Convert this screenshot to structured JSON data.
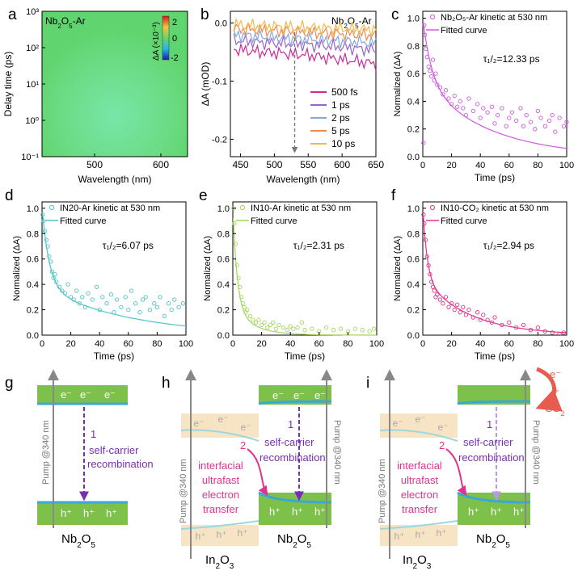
{
  "panel_letters": {
    "a": "a",
    "b": "b",
    "c": "c",
    "d": "d",
    "e": "e",
    "f": "f",
    "g": "g",
    "h": "h",
    "i": "i"
  },
  "colors": {
    "green": "#7dc04a",
    "blue_band": "#3aa7d8",
    "cyan": "#5bcdd0",
    "purple": "#7a2fb0",
    "magenta": "#e0348c",
    "arrow": "#888888",
    "peach": "#f7e4c4",
    "red_arc": "#e85c50"
  },
  "chart_data": [
    {
      "panel": "a",
      "type": "heatmap",
      "label": "Nb2O5-Ar",
      "xlabel": "Wavelength (nm)",
      "ylabel": "Delay time (ps)",
      "xticks": [
        "500",
        "600"
      ],
      "yticks": [
        "10³",
        "10²",
        "10¹",
        "10⁰",
        "10⁻¹"
      ],
      "yscale": "log",
      "xlim": [
        430,
        650
      ],
      "ylim": [
        0.1,
        1000
      ],
      "colorbar": {
        "title": "ΔA (×10⁻³)",
        "ticks": [
          "2",
          "0",
          "-2"
        ],
        "range": [
          -2,
          2
        ]
      },
      "grid": false
    },
    {
      "panel": "b",
      "type": "line",
      "label": "Nb2O5-Ar",
      "xlabel": "Wavelength (nm)",
      "ylabel": "ΔA (mOD)",
      "xlim": [
        435,
        650
      ],
      "ylim": [
        -0.23,
        0.02
      ],
      "xticks": [
        "450",
        "500",
        "550",
        "600",
        "650"
      ],
      "yticks": [
        "0.0",
        "-0.1",
        "-0.2"
      ],
      "marker_x": 530,
      "series": [
        {
          "name": "500 fs",
          "color": "#cc2a9a",
          "values": [
            -0.045,
            -0.05,
            -0.052,
            -0.055,
            -0.06,
            -0.065,
            -0.07
          ]
        },
        {
          "name": "1 ps",
          "color": "#9a64c8",
          "values": [
            -0.03,
            -0.033,
            -0.035,
            -0.037,
            -0.04,
            -0.043,
            -0.047
          ]
        },
        {
          "name": "2 ps",
          "color": "#84a8e0",
          "values": [
            -0.02,
            -0.023,
            -0.026,
            -0.028,
            -0.03,
            -0.032,
            -0.035
          ]
        },
        {
          "name": "5 ps",
          "color": "#f08a50",
          "values": [
            -0.01,
            -0.012,
            -0.014,
            -0.016,
            -0.018,
            -0.019,
            -0.021
          ]
        },
        {
          "name": "10 ps",
          "color": "#f2b84a",
          "values": [
            -0.003,
            -0.005,
            -0.006,
            -0.008,
            -0.009,
            -0.01,
            -0.011
          ]
        }
      ],
      "x": [
        440,
        475,
        510,
        545,
        580,
        615,
        650
      ]
    },
    {
      "panel": "c",
      "type": "scatter",
      "legend": [
        "Nb₂O₅-Ar kinetic at 530 nm",
        "Fitted curve"
      ],
      "annotation": "τ₁/₂=12.33 ps",
      "xlabel": "Time (ps)",
      "ylabel": "Normalized (ΔA)",
      "xlim": [
        0,
        100
      ],
      "ylim": [
        0,
        1.05
      ],
      "xticks": [
        "0",
        "20",
        "40",
        "60",
        "80",
        "100"
      ],
      "yticks": [
        "0.0",
        "0.2",
        "0.4",
        "0.6",
        "0.8",
        "1.0"
      ],
      "color": "#d058e0",
      "fit": {
        "a1": 0.45,
        "t1": 6,
        "a2": 0.55,
        "t2": 45
      },
      "x": [
        0.5,
        1,
        1.5,
        2,
        3,
        4,
        5,
        6,
        7,
        8,
        9,
        10,
        12,
        14,
        16,
        18,
        20,
        22,
        24,
        26,
        28,
        30,
        32,
        35,
        38,
        40,
        42,
        45,
        48,
        50,
        52,
        55,
        58,
        60,
        62,
        65,
        68,
        70,
        72,
        75,
        78,
        80,
        82,
        85,
        88,
        90,
        92,
        95,
        98,
        100
      ],
      "y": [
        0.1,
        0.95,
        0.88,
        0.78,
        0.72,
        0.65,
        0.62,
        0.58,
        0.7,
        0.55,
        0.6,
        0.52,
        0.5,
        0.45,
        0.48,
        0.42,
        0.38,
        0.44,
        0.36,
        0.4,
        0.35,
        0.3,
        0.42,
        0.33,
        0.38,
        0.28,
        0.35,
        0.32,
        0.36,
        0.24,
        0.3,
        0.35,
        0.22,
        0.28,
        0.32,
        0.26,
        0.35,
        0.22,
        0.3,
        0.25,
        0.2,
        0.33,
        0.28,
        0.22,
        0.26,
        0.3,
        0.18,
        0.28,
        0.22,
        0.25
      ]
    },
    {
      "panel": "d",
      "type": "scatter",
      "legend": [
        "IN20-Ar kinetic at 530 nm",
        "Fitted curve"
      ],
      "annotation": "τ₁/₂=6.07 ps",
      "xlabel": "Time (ps)",
      "ylabel": "Normalized (ΔA)",
      "xlim": [
        0,
        100
      ],
      "ylim": [
        0,
        1.05
      ],
      "xticks": [
        "0",
        "20",
        "40",
        "60",
        "80",
        "100"
      ],
      "yticks": [
        "0.0",
        "0.2",
        "0.4",
        "0.6",
        "0.8",
        "1.0"
      ],
      "color": "#4cc4c8",
      "fit": {
        "a1": 0.62,
        "t1": 5,
        "a2": 0.38,
        "t2": 60
      },
      "x": [
        0.5,
        1,
        2,
        3,
        4,
        5,
        6,
        7,
        8,
        9,
        10,
        12,
        14,
        16,
        18,
        20,
        22,
        24,
        26,
        28,
        30,
        32,
        35,
        38,
        40,
        42,
        45,
        48,
        50,
        52,
        55,
        58,
        60,
        62,
        65,
        68,
        70,
        72,
        75,
        78,
        80,
        82,
        85,
        88,
        90,
        92,
        95,
        98
      ],
      "y": [
        0.95,
        0.9,
        0.82,
        0.75,
        0.7,
        0.62,
        0.58,
        0.5,
        0.45,
        0.48,
        0.42,
        0.38,
        0.35,
        0.33,
        0.4,
        0.3,
        0.28,
        0.35,
        0.25,
        0.3,
        0.22,
        0.33,
        0.28,
        0.38,
        0.2,
        0.3,
        0.25,
        0.32,
        0.18,
        0.28,
        0.22,
        0.3,
        0.2,
        0.35,
        0.25,
        0.18,
        0.28,
        0.3,
        0.2,
        0.25,
        0.22,
        0.3,
        0.15,
        0.25,
        0.2,
        0.28,
        0.22,
        0.25
      ]
    },
    {
      "panel": "e",
      "type": "scatter",
      "legend": [
        "IN10-Ar kinetic at 530 nm",
        "Fitted curve"
      ],
      "annotation": "τ₁/₂=2.31 ps",
      "xlabel": "Time (ps)",
      "ylabel": "Normalized (ΔA)",
      "xlim": [
        0,
        100
      ],
      "ylim": [
        0,
        1.05
      ],
      "xticks": [
        "0",
        "20",
        "40",
        "60",
        "80",
        "100"
      ],
      "yticks": [
        "0.0",
        "0.2",
        "0.4",
        "0.6",
        "0.8",
        "1.0"
      ],
      "color": "#a4d65a",
      "fit": {
        "a1": 0.78,
        "t1": 3,
        "a2": 0.22,
        "t2": 14
      },
      "x": [
        0.5,
        1,
        2,
        3,
        4,
        5,
        6,
        7,
        8,
        9,
        10,
        12,
        14,
        16,
        18,
        20,
        22,
        24,
        26,
        28,
        30,
        32,
        35,
        38,
        40,
        42,
        45,
        48,
        50,
        55,
        60,
        65,
        70,
        75,
        80,
        85,
        90,
        95,
        98
      ],
      "y": [
        1.0,
        0.88,
        0.72,
        0.55,
        0.45,
        0.38,
        0.3,
        0.25,
        0.22,
        0.18,
        0.2,
        0.15,
        0.12,
        0.1,
        0.12,
        0.08,
        0.1,
        0.06,
        0.08,
        0.1,
        0.05,
        0.08,
        0.06,
        0.04,
        0.07,
        0.05,
        0.06,
        0.1,
        0.04,
        0.05,
        0.03,
        0.06,
        0.04,
        0.05,
        0.03,
        0.05,
        0.04,
        0.03,
        0.05
      ]
    },
    {
      "panel": "f",
      "type": "scatter",
      "legend": [
        "IN10-CO₂ kinetic at 530 nm",
        "Fitted curve"
      ],
      "annotation": "τ₁/₂=2.94 ps",
      "xlabel": "Time (ps)",
      "ylabel": "Normalized (ΔA)",
      "xlim": [
        0,
        100
      ],
      "ylim": [
        0,
        1.05
      ],
      "xticks": [
        "0",
        "20",
        "40",
        "60",
        "80",
        "100"
      ],
      "yticks": [
        "0.0",
        "0.2",
        "0.4",
        "0.6",
        "0.8",
        "1.0"
      ],
      "color": "#e0348c",
      "fit": {
        "a1": 0.55,
        "t1": 3,
        "a2": 0.45,
        "t2": 32
      },
      "x": [
        0.5,
        1,
        2,
        3,
        4,
        5,
        6,
        7,
        8,
        9,
        10,
        12,
        14,
        16,
        18,
        20,
        22,
        24,
        26,
        28,
        30,
        32,
        35,
        38,
        40,
        42,
        45,
        48,
        50,
        55,
        60,
        65,
        70,
        75,
        80,
        85,
        90,
        95,
        98
      ],
      "y": [
        0.95,
        0.88,
        0.75,
        0.62,
        0.55,
        0.48,
        0.42,
        0.38,
        0.35,
        0.3,
        0.32,
        0.28,
        0.25,
        0.3,
        0.22,
        0.25,
        0.2,
        0.24,
        0.18,
        0.22,
        0.16,
        0.2,
        0.14,
        0.18,
        0.12,
        0.16,
        0.12,
        0.1,
        0.14,
        0.08,
        0.1,
        0.06,
        0.08,
        0.04,
        0.06,
        0.03,
        0.02,
        0.01,
        0.02
      ]
    }
  ],
  "diagrams": {
    "g": {
      "electron_labels": [
        "e⁻",
        "e⁻",
        "e⁻"
      ],
      "hole_labels": [
        "h⁺",
        "h⁺",
        "h⁺"
      ],
      "pump_label": "Pump @340 nm",
      "step_number": "1",
      "step_text_1": "self-carrier",
      "step_text_2": "recombination",
      "material": "Nb₂O₅"
    },
    "h": {
      "in_electron_labels": [
        "e⁻",
        "e⁻",
        "e⁻"
      ],
      "in_hole_labels": [
        "h⁺",
        "h⁺",
        "h⁺"
      ],
      "nb_electron_labels": [
        "e⁻",
        "e⁻",
        "e⁻"
      ],
      "nb_hole_labels": [
        "h⁺",
        "h⁺",
        "h⁺"
      ],
      "pump_label_left": "Pump @340 nm",
      "pump_label_right": "Pump @340 nm",
      "step1_number": "1",
      "step1_text_1": "self-carrier",
      "step1_text_2": "recombination",
      "step2_number": "2",
      "step2_text": [
        "interfacial",
        "ultrafast",
        "electron",
        "transfer"
      ],
      "material_left": "In₂O₃",
      "material_right": "Nb₂O₅"
    },
    "i": {
      "in_electron_labels": [
        "e⁻",
        "e⁻",
        "e⁻"
      ],
      "in_hole_labels": [
        "h⁺",
        "h⁺",
        "h⁺"
      ],
      "nb_hole_labels": [
        "h⁺",
        "h⁺",
        "h⁺"
      ],
      "pump_label_left": "Pump @340 nm",
      "pump_label_right": "Pump @340 nm",
      "step1_number": "1",
      "step1_text_1": "self-carrier",
      "step1_text_2": "recombination",
      "step2_number": "2",
      "step2_text": [
        "interfacial",
        "ultrafast",
        "electron",
        "transfer"
      ],
      "co2_e": "e⁻",
      "co2_plus": "+",
      "co2_label": "CO₂",
      "material_left": "In₂O₃",
      "material_right": "Nb₂O₅"
    }
  }
}
